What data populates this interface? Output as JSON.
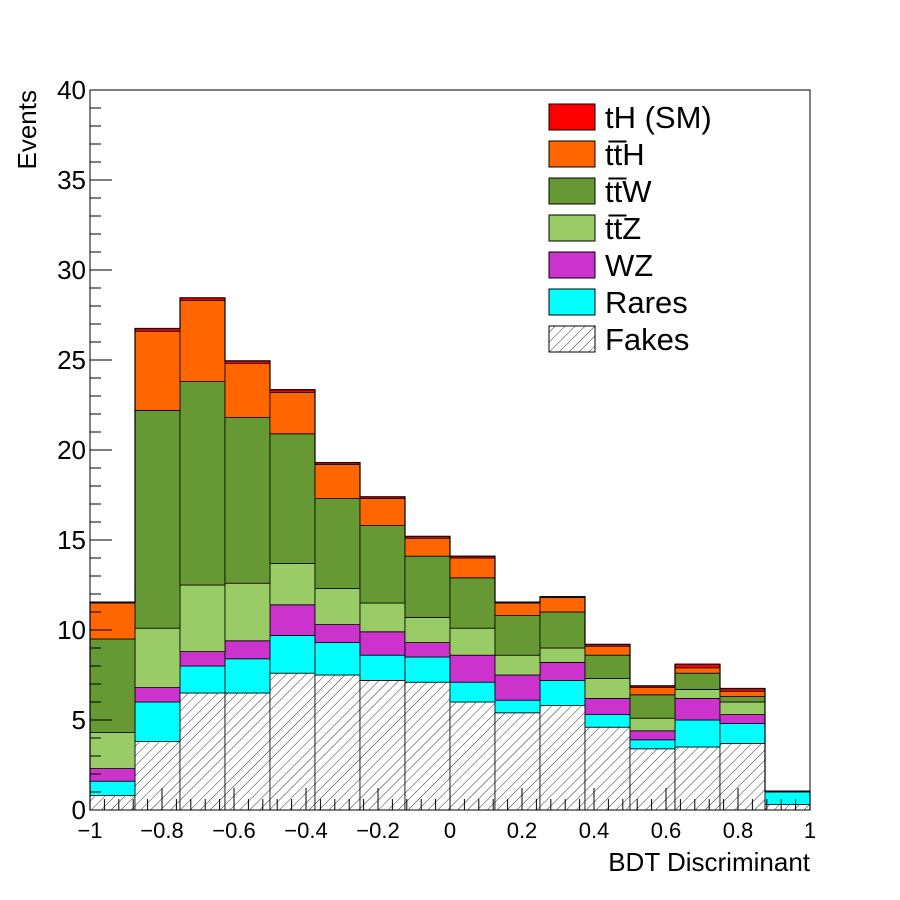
{
  "chart_data": {
    "type": "bar",
    "stacked": true,
    "histogram": true,
    "xlabel": "BDT Discriminant",
    "ylabel": "Events",
    "xlim": [
      -1,
      1
    ],
    "ylim": [
      0,
      40
    ],
    "bin_edges": [
      -1,
      -0.875,
      -0.75,
      -0.625,
      -0.5,
      -0.375,
      -0.25,
      -0.125,
      0,
      0.125,
      0.25,
      0.375,
      0.5,
      0.625,
      0.75,
      0.875,
      1
    ],
    "x_ticks": [
      -1,
      -0.8,
      -0.6,
      -0.4,
      -0.2,
      0,
      0.2,
      0.4,
      0.6,
      0.8,
      1
    ],
    "x_tick_labels": [
      "−1",
      "−0.8",
      "−0.6",
      "−0.4",
      "−0.2",
      "0",
      "0.2",
      "0.4",
      "0.6",
      "0.8",
      "1"
    ],
    "y_ticks": [
      0,
      5,
      10,
      15,
      20,
      25,
      30,
      35,
      40
    ],
    "y_tick_labels": [
      "0",
      "5",
      "10",
      "15",
      "20",
      "25",
      "30",
      "35",
      "40"
    ],
    "legend_position": "top-right",
    "series": [
      {
        "name": "Fakes",
        "color": "#ffffff",
        "hatch": true,
        "values": [
          0.8,
          3.8,
          6.5,
          6.5,
          7.6,
          7.5,
          7.2,
          7.1,
          6.0,
          5.4,
          5.8,
          4.6,
          3.4,
          3.5,
          3.7,
          0.3
        ]
      },
      {
        "name": "Rares",
        "color": "#00ffff",
        "values": [
          0.8,
          2.2,
          1.5,
          1.9,
          2.1,
          1.8,
          1.4,
          1.4,
          1.1,
          0.7,
          1.4,
          0.7,
          0.5,
          1.5,
          1.1,
          0.7
        ]
      },
      {
        "name": "WZ",
        "color": "#cc33cc",
        "values": [
          0.7,
          0.8,
          0.8,
          1.0,
          1.7,
          1.0,
          1.3,
          0.8,
          1.5,
          1.4,
          1.0,
          0.9,
          0.5,
          1.2,
          0.5,
          0
        ]
      },
      {
        "name": "tt̅Z",
        "color": "#99cc66",
        "values": [
          2.0,
          3.3,
          3.7,
          3.2,
          2.3,
          2.0,
          1.6,
          1.4,
          1.5,
          1.1,
          0.8,
          1.1,
          0.7,
          0.5,
          0.7,
          0
        ]
      },
      {
        "name": "tt̅W",
        "color": "#669933",
        "values": [
          5.2,
          12.1,
          11.3,
          9.2,
          7.2,
          5.0,
          4.3,
          3.4,
          2.8,
          2.2,
          2.0,
          1.3,
          1.3,
          0.9,
          0.3,
          0
        ]
      },
      {
        "name": "tt̅H",
        "color": "#ff6600",
        "values": [
          2.0,
          4.4,
          4.5,
          3.0,
          2.3,
          1.9,
          1.5,
          1.0,
          1.1,
          0.7,
          0.8,
          0.5,
          0.4,
          0.3,
          0.3,
          0
        ]
      },
      {
        "name": "tH (SM)",
        "color": "#ff0000",
        "values": [
          0.05,
          0.15,
          0.15,
          0.15,
          0.15,
          0.1,
          0.1,
          0.1,
          0.1,
          0.05,
          0.05,
          0.1,
          0.1,
          0.2,
          0.15,
          0.05
        ]
      }
    ],
    "legend_order": [
      "tH (SM)",
      "tt̅H",
      "tt̅W",
      "tt̅Z",
      "WZ",
      "Rares",
      "Fakes"
    ]
  }
}
